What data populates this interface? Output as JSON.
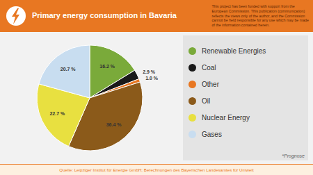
{
  "chart_data": {
    "type": "pie",
    "title": "Primary energy consumption in Bavaria",
    "categories": [
      "Renewable Energies",
      "Coal",
      "Other",
      "Oil",
      "Nuclear Energy",
      "Gases"
    ],
    "values": [
      16.2,
      2.9,
      1.0,
      36.4,
      22.7,
      20.7
    ],
    "value_labels": [
      "16.2 %",
      "2.9 %",
      "1.0 %",
      "36.4 %",
      "22.7 %",
      "20.7 %"
    ],
    "colors": [
      "#7aaa3a",
      "#1a1a1a",
      "#e87722",
      "#8b5a1a",
      "#e8e040",
      "#c8ddf0"
    ],
    "data_labels": true,
    "legend": "right",
    "annotations": [
      "This project has been funded with support from the\nEuropean Commission. This publication (communication)\nreflects the views only of the author, and the Commission\ncannot be held responsible for any use which may be made\nof the information contained herein.",
      "Quelle: Leipziger Institut für Energie GmbH; Berechnungen des Bayerischen Landesamtes für Umwelt",
      "*Prognose"
    ]
  }
}
